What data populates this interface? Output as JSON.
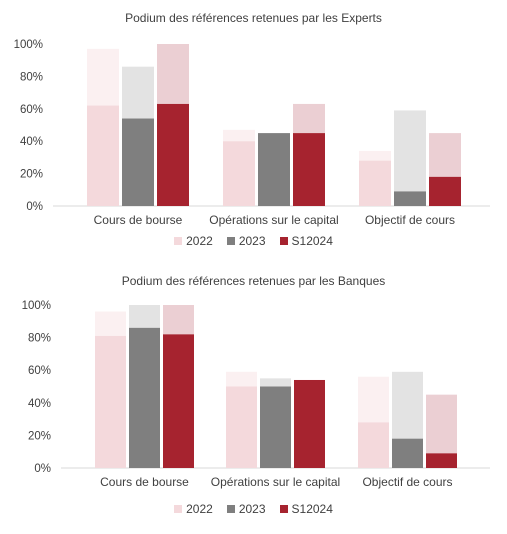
{
  "colors": {
    "2022": "#f4d9dc",
    "2023": "#7f7f7f",
    "S12024": "#a6232f",
    "2022_light": "#fbf0f1",
    "2023_light": "#e3e3e3",
    "S12024_light": "#ebcfd3",
    "axis": "#d9d9d9"
  },
  "chart_data": [
    {
      "type": "bar",
      "title": "Podium des références retenues par les Experts",
      "categories": [
        "Cours de bourse",
        "Opérations sur le capital",
        "Objectif de cours"
      ],
      "ylim": [
        0,
        100
      ],
      "ytick_labels": [
        "0%",
        "20%",
        "40%",
        "60%",
        "80%",
        "100%"
      ],
      "legend_position": "bottom",
      "series": [
        {
          "name": "2022",
          "values": [
            62,
            40,
            28
          ],
          "totals": [
            97,
            47,
            34
          ]
        },
        {
          "name": "2023",
          "values": [
            54,
            45,
            9
          ],
          "totals": [
            86,
            45,
            59
          ]
        },
        {
          "name": "S12024",
          "values": [
            63,
            45,
            18
          ],
          "totals": [
            100,
            63,
            45
          ]
        }
      ]
    },
    {
      "type": "bar",
      "title": "Podium des références retenues par les Banques",
      "categories": [
        "Cours de bourse",
        "Opérations sur le capital",
        "Objectif de cours"
      ],
      "ylim": [
        0,
        100
      ],
      "ytick_labels": [
        "0%",
        "20%",
        "40%",
        "60%",
        "80%",
        "100%"
      ],
      "legend_position": "bottom",
      "series": [
        {
          "name": "2022",
          "values": [
            81,
            50,
            28
          ],
          "totals": [
            96,
            59,
            56
          ]
        },
        {
          "name": "2023",
          "values": [
            86,
            50,
            18
          ],
          "totals": [
            100,
            55,
            59
          ]
        },
        {
          "name": "S12024",
          "values": [
            82,
            54,
            9
          ],
          "totals": [
            100,
            54,
            45
          ]
        }
      ]
    }
  ]
}
